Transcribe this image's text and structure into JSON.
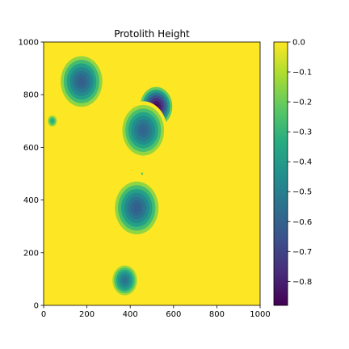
{
  "chart_data": {
    "type": "heatmap",
    "title": "Protolith Height",
    "xlabel": "",
    "ylabel": "",
    "xlim": [
      0,
      1000
    ],
    "ylim": [
      0,
      1000
    ],
    "x_ticks": [
      "0",
      "200",
      "400",
      "600",
      "800",
      "1000"
    ],
    "y_ticks": [
      "0",
      "200",
      "400",
      "600",
      "800",
      "1000"
    ],
    "colorbar": {
      "range": [
        -0.88,
        0.0
      ],
      "ticks": [
        "0.0",
        "−0.1",
        "−0.2",
        "−0.3",
        "−0.4",
        "−0.5",
        "−0.6",
        "−0.7",
        "−0.8"
      ],
      "colormap": "viridis",
      "colors": [
        "#440154",
        "#472c7a",
        "#3b518b",
        "#2c718e",
        "#21908d",
        "#27ad81",
        "#5cc863",
        "#aadc32",
        "#fde725"
      ]
    },
    "background_value": 0.0,
    "grid": false,
    "depressions": [
      {
        "x": 175,
        "y": 850,
        "min_value": -0.62,
        "radius": 110
      },
      {
        "x": 40,
        "y": 700,
        "min_value": -0.35,
        "radius": 25
      },
      {
        "x": 520,
        "y": 755,
        "min_value": -0.88,
        "radius": 85
      },
      {
        "x": 460,
        "y": 665,
        "min_value": -0.6,
        "radius": 110
      },
      {
        "x": 455,
        "y": 500,
        "min_value": -0.3,
        "radius": 6
      },
      {
        "x": 430,
        "y": 370,
        "min_value": -0.62,
        "radius": 115
      },
      {
        "x": 375,
        "y": 95,
        "min_value": -0.55,
        "radius": 65
      }
    ]
  }
}
